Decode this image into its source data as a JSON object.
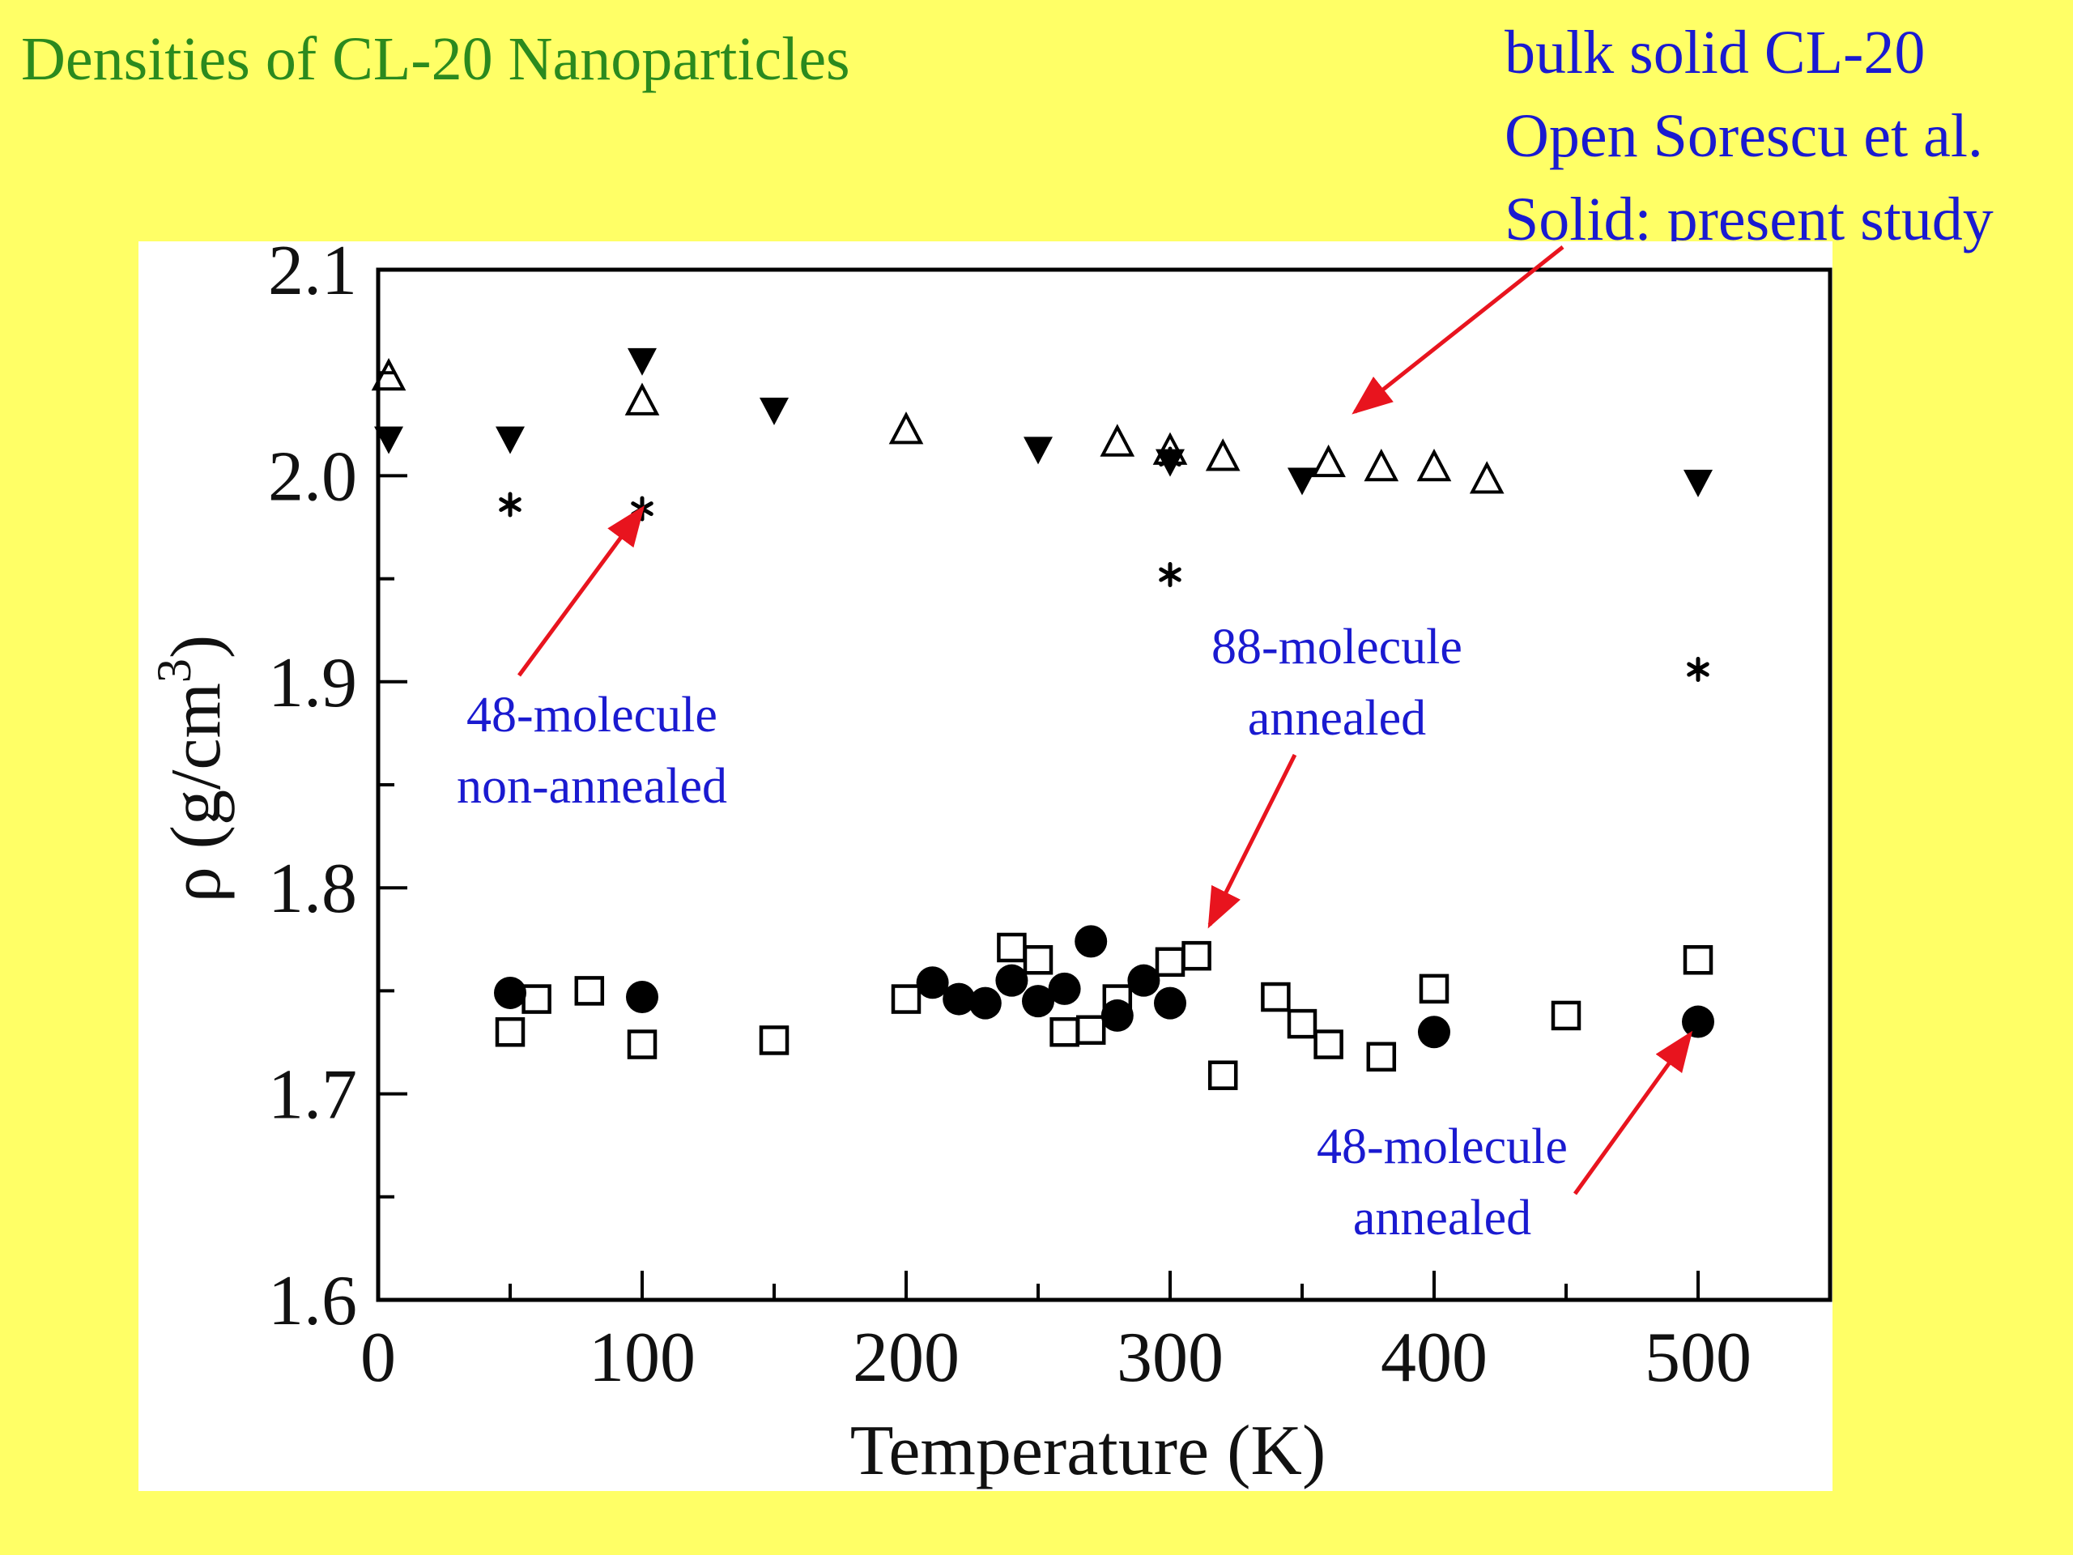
{
  "slide": {
    "title": "Densities of CL-20 Nanoparticles",
    "top_notes": [
      "bulk solid CL-20",
      "Open Sorescu et al.",
      "Solid: present study"
    ],
    "accent_colors": {
      "title": "#2B8A1E",
      "annotation": "#1A1AD0",
      "arrow": "#E8141E",
      "background": "#FFFF66"
    }
  },
  "chart_data": {
    "type": "scatter",
    "xlabel": "Temperature (K)",
    "ylabel": "ρ (g/cm",
    "ylabel_sup": "3",
    "ylabel_close": ")",
    "xlim": [
      0,
      550
    ],
    "ylim": [
      1.6,
      2.1
    ],
    "x_ticks": [
      0,
      100,
      200,
      300,
      400,
      500
    ],
    "y_ticks": [
      1.6,
      1.7,
      1.8,
      1.9,
      2.0,
      2.1
    ],
    "x_tick_labels": [
      "0",
      "100",
      "200",
      "300",
      "400",
      "500"
    ],
    "y_tick_labels": [
      "1.6",
      "1.7",
      "1.8",
      "1.9",
      "2.0",
      "2.1"
    ],
    "grid": false,
    "series": [
      {
        "marker": "triangle-down-filled",
        "points": [
          [
            4,
            2.018
          ],
          [
            50,
            2.018
          ],
          [
            100,
            2.056
          ],
          [
            150,
            2.032
          ],
          [
            250,
            2.013
          ],
          [
            300,
            2.007
          ],
          [
            350,
            1.998
          ],
          [
            500,
            1.997
          ]
        ]
      },
      {
        "marker": "triangle-up-open",
        "points": [
          [
            4,
            2.048
          ],
          [
            100,
            2.036
          ],
          [
            200,
            2.022
          ],
          [
            280,
            2.016
          ],
          [
            300,
            2.012
          ],
          [
            320,
            2.009
          ],
          [
            360,
            2.006
          ],
          [
            380,
            2.004
          ],
          [
            400,
            2.004
          ],
          [
            420,
            1.998
          ]
        ]
      },
      {
        "marker": "asterisk",
        "points": [
          [
            50,
            1.986
          ],
          [
            100,
            1.984
          ],
          [
            300,
            2.008
          ],
          [
            300,
            1.952
          ],
          [
            500,
            1.906
          ]
        ]
      },
      {
        "marker": "square-open",
        "points": [
          [
            50,
            1.73
          ],
          [
            60,
            1.746
          ],
          [
            80,
            1.75
          ],
          [
            100,
            1.724
          ],
          [
            150,
            1.726
          ],
          [
            200,
            1.746
          ],
          [
            240,
            1.771
          ],
          [
            250,
            1.765
          ],
          [
            260,
            1.73
          ],
          [
            270,
            1.731
          ],
          [
            280,
            1.746
          ],
          [
            300,
            1.764
          ],
          [
            310,
            1.767
          ],
          [
            320,
            1.709
          ],
          [
            340,
            1.747
          ],
          [
            350,
            1.734
          ],
          [
            360,
            1.724
          ],
          [
            380,
            1.718
          ],
          [
            400,
            1.751
          ],
          [
            450,
            1.738
          ],
          [
            500,
            1.765
          ]
        ]
      },
      {
        "marker": "circle-filled",
        "points": [
          [
            50,
            1.749
          ],
          [
            100,
            1.747
          ],
          [
            210,
            1.754
          ],
          [
            220,
            1.746
          ],
          [
            230,
            1.744
          ],
          [
            240,
            1.755
          ],
          [
            250,
            1.745
          ],
          [
            260,
            1.751
          ],
          [
            270,
            1.774
          ],
          [
            280,
            1.738
          ],
          [
            290,
            1.755
          ],
          [
            300,
            1.744
          ],
          [
            400,
            1.73
          ],
          [
            500,
            1.735
          ]
        ]
      }
    ],
    "annotations": [
      {
        "lines": [
          "48-molecule",
          "non-annealed"
        ],
        "points_to": [
          100,
          1.984
        ]
      },
      {
        "lines": [
          "88-molecule",
          "annealed"
        ],
        "points_to": [
          315,
          1.782
        ]
      },
      {
        "lines": [
          "48-molecule",
          "annealed"
        ],
        "points_to": [
          497,
          1.729
        ]
      },
      {
        "lines": [],
        "points_to": [
          370,
          2.031
        ]
      }
    ]
  }
}
